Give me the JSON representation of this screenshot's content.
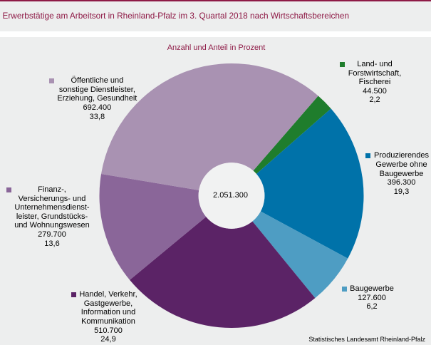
{
  "title": "Erwerbstätige am Arbeitsort in Rheinland-Pfalz im 3. Quartal 2018 nach Wirtschaftsbereichen",
  "subtitle": "Anzahl und Anteil in Prozent",
  "footer": "Statistisches Landesamt Rheinland-Pfalz",
  "colors": {
    "accent_red": "#8E1A46",
    "background": "#EDEEEE",
    "band_white": "#FFFFFF",
    "hole_fill": "#F1F2F2",
    "text": "#000000"
  },
  "chart_data": {
    "type": "pie",
    "title": "Erwerbstätige am Arbeitsort in Rheinland-Pfalz im 3. Quartal 2018 nach Wirtschaftsbereichen",
    "subtitle": "Anzahl und Anteil in Prozent",
    "donut_hole_ratio": 0.25,
    "start_angle_deg": 41,
    "center_label": "2.051.300",
    "legend_position": "data-labels around pie",
    "segments": [
      {
        "name": "Land- und Forstwirtschaft, Fischerei",
        "label_lines": [
          "Land- und",
          "Forstwirtschaft,",
          "Fischerei"
        ],
        "value": 44500,
        "value_text": "44.500",
        "percent": 2.2,
        "percent_text": "2,2",
        "color": "#1F7D2C"
      },
      {
        "name": "Produzierendes Gewerbe ohne Baugewerbe",
        "label_lines": [
          "Produzierendes",
          "Gewerbe ohne",
          "Baugewerbe"
        ],
        "value": 396300,
        "value_text": "396.300",
        "percent": 19.3,
        "percent_text": "19,3",
        "color": "#0072A9"
      },
      {
        "name": "Baugewerbe",
        "label_lines": [
          "Baugewerbe"
        ],
        "value": 127600,
        "value_text": "127.600",
        "percent": 6.2,
        "percent_text": "6,2",
        "color": "#4E9DC3"
      },
      {
        "name": "Handel, Verkehr, Gastgewerbe, Information und Kommunikation",
        "label_lines": [
          "Handel, Verkehr,",
          "Gastgewerbe,",
          "Information und",
          "Kommunikation"
        ],
        "value": 510700,
        "value_text": "510.700",
        "percent": 24.9,
        "percent_text": "24,9",
        "color": "#5B2366"
      },
      {
        "name": "Finanz-, Versicherungs- und Unternehmensdienstleister, Grundstücks- und Wohnungswesen",
        "label_lines": [
          "Finanz-,",
          "Versicherungs- und",
          "Unternehmensdienst-",
          "leister, Grundstücks-",
          "und Wohnungswesen"
        ],
        "value": 279700,
        "value_text": "279.700",
        "percent": 13.6,
        "percent_text": "13,6",
        "color": "#8A6699"
      },
      {
        "name": "Öffentliche und sonstige Dienstleister, Erziehung, Gesundheit",
        "label_lines": [
          "Öffentliche und",
          "sonstige Dienstleister,",
          "Erziehung, Gesundheit"
        ],
        "value": 692400,
        "value_text": "692.400",
        "percent": 33.8,
        "percent_text": "33,8",
        "color": "#A992B2"
      }
    ]
  }
}
